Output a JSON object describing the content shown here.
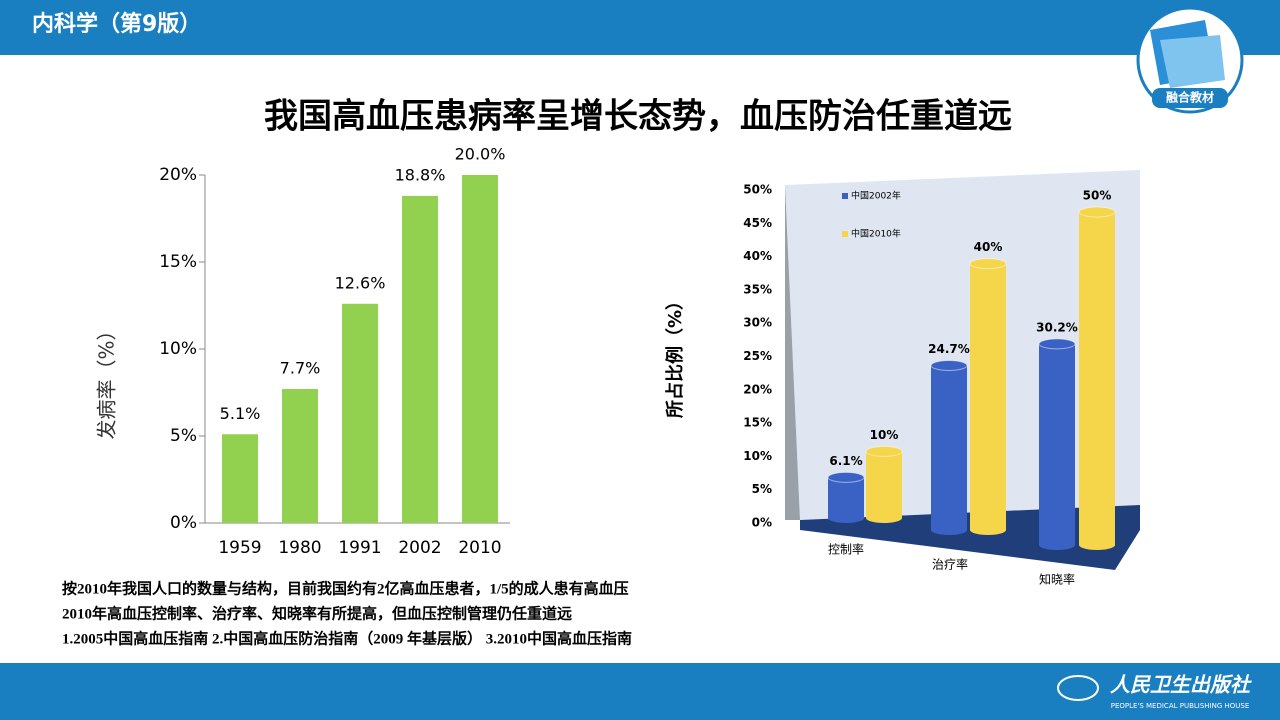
{
  "header": {
    "title": "内科学（第9版）",
    "badge": "融合教材"
  },
  "title": "我国高血压患病率呈增长态势，血压防治任重道远",
  "notes": [
    "按2010年我国人口的数量与结构，目前我国约有2亿高血压患者，1/5的成人患有高血压",
    "2010年高血压控制率、治疗率、知晓率有所提高，但血压控制管理仍任重道远",
    "1.2005中国高血压指南  2.中国高血压防治指南（2009 年基层版）  3.2010中国高血压指南"
  ],
  "footer": {
    "publisher": "人民卫生出版社",
    "publisher_en": "PEOPLE'S MEDICAL PUBLISHING HOUSE"
  },
  "chart_data": [
    {
      "type": "bar",
      "ylabel": "发病率（%）",
      "categories": [
        "1959",
        "1980",
        "1991",
        "2002",
        "2010"
      ],
      "values": [
        5.1,
        7.7,
        12.6,
        18.8,
        20.0
      ],
      "value_labels": [
        "5.1%",
        "7.7%",
        "12.6%",
        "18.8%",
        "20.0%"
      ],
      "color": "#92d050",
      "ylim": [
        0,
        20
      ],
      "yticks": [
        {
          "value": 0,
          "label": "0%"
        },
        {
          "value": 5,
          "label": "5%"
        },
        {
          "value": 10,
          "label": "10%"
        },
        {
          "value": 15,
          "label": "15%"
        },
        {
          "value": 20,
          "label": "20%"
        }
      ]
    },
    {
      "type": "bar3d",
      "ylabel": "所占比例（%）",
      "categories": [
        "控制率",
        "治疗率",
        "知晓率"
      ],
      "series": [
        {
          "name": "中国2002年",
          "color": "#3a62c4",
          "values": [
            6.1,
            24.7,
            30.2
          ],
          "value_labels": [
            "6.1%",
            "24.7%",
            "30.2%"
          ]
        },
        {
          "name": "中国2010年",
          "color": "#f5d54a",
          "values": [
            10,
            40,
            50
          ],
          "value_labels": [
            "10%",
            "40%",
            "50%"
          ]
        }
      ],
      "ylim": [
        0,
        50
      ],
      "yticks": [
        {
          "value": 0,
          "label": "0%"
        },
        {
          "value": 5,
          "label": "5%"
        },
        {
          "value": 10,
          "label": "10%"
        },
        {
          "value": 15,
          "label": "15%"
        },
        {
          "value": 20,
          "label": "20%"
        },
        {
          "value": 25,
          "label": "25%"
        },
        {
          "value": 30,
          "label": "30%"
        },
        {
          "value": 35,
          "label": "35%"
        },
        {
          "value": 40,
          "label": "40%"
        },
        {
          "value": 45,
          "label": "45%"
        },
        {
          "value": 50,
          "label": "50%"
        }
      ],
      "legend": "top-left"
    }
  ]
}
